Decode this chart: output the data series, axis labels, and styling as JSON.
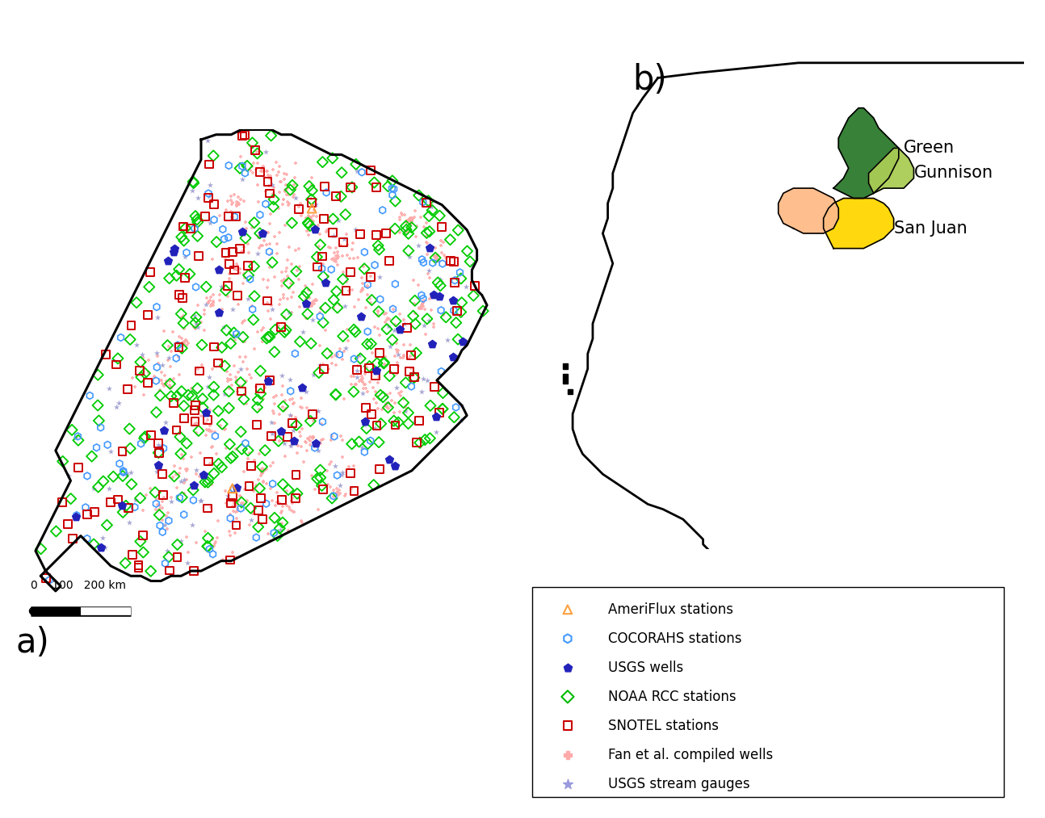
{
  "title_a": "a)",
  "title_b": "b)",
  "legend_items": [
    {
      "label": "AmeriFlux stations",
      "marker": "^",
      "facecolor": "none",
      "edgecolor": "#FFA040",
      "size": 60
    },
    {
      "label": "COCORAHS stations",
      "marker": "h",
      "facecolor": "none",
      "edgecolor": "#4499FF",
      "size": 60
    },
    {
      "label": "USGS wells",
      "marker": "p",
      "facecolor": "#2222BB",
      "edgecolor": "#2222BB",
      "size": 60
    },
    {
      "label": "NOAA RCC stations",
      "marker": "D",
      "facecolor": "none",
      "edgecolor": "#00BB00",
      "size": 60
    },
    {
      "label": "SNOTEL stations",
      "marker": "s",
      "facecolor": "none",
      "edgecolor": "#CC0000",
      "size": 60
    },
    {
      "label": "Fan et al. compiled wells",
      "marker": "P",
      "facecolor": "#FFAAAA",
      "edgecolor": "#FFAAAA",
      "size": 50
    },
    {
      "label": "USGS stream gauges",
      "marker": "*",
      "facecolor": "#9999DD",
      "edgecolor": "#9999DD",
      "size": 80
    }
  ],
  "subbasin_colors": {
    "Green": "#2D7A2D",
    "Gunnison": "#AACC55",
    "SanJuan": "#FFD700",
    "Other": "#FFBB88"
  },
  "background_color": "#FFFFFF",
  "map_border_lw": 2.2
}
